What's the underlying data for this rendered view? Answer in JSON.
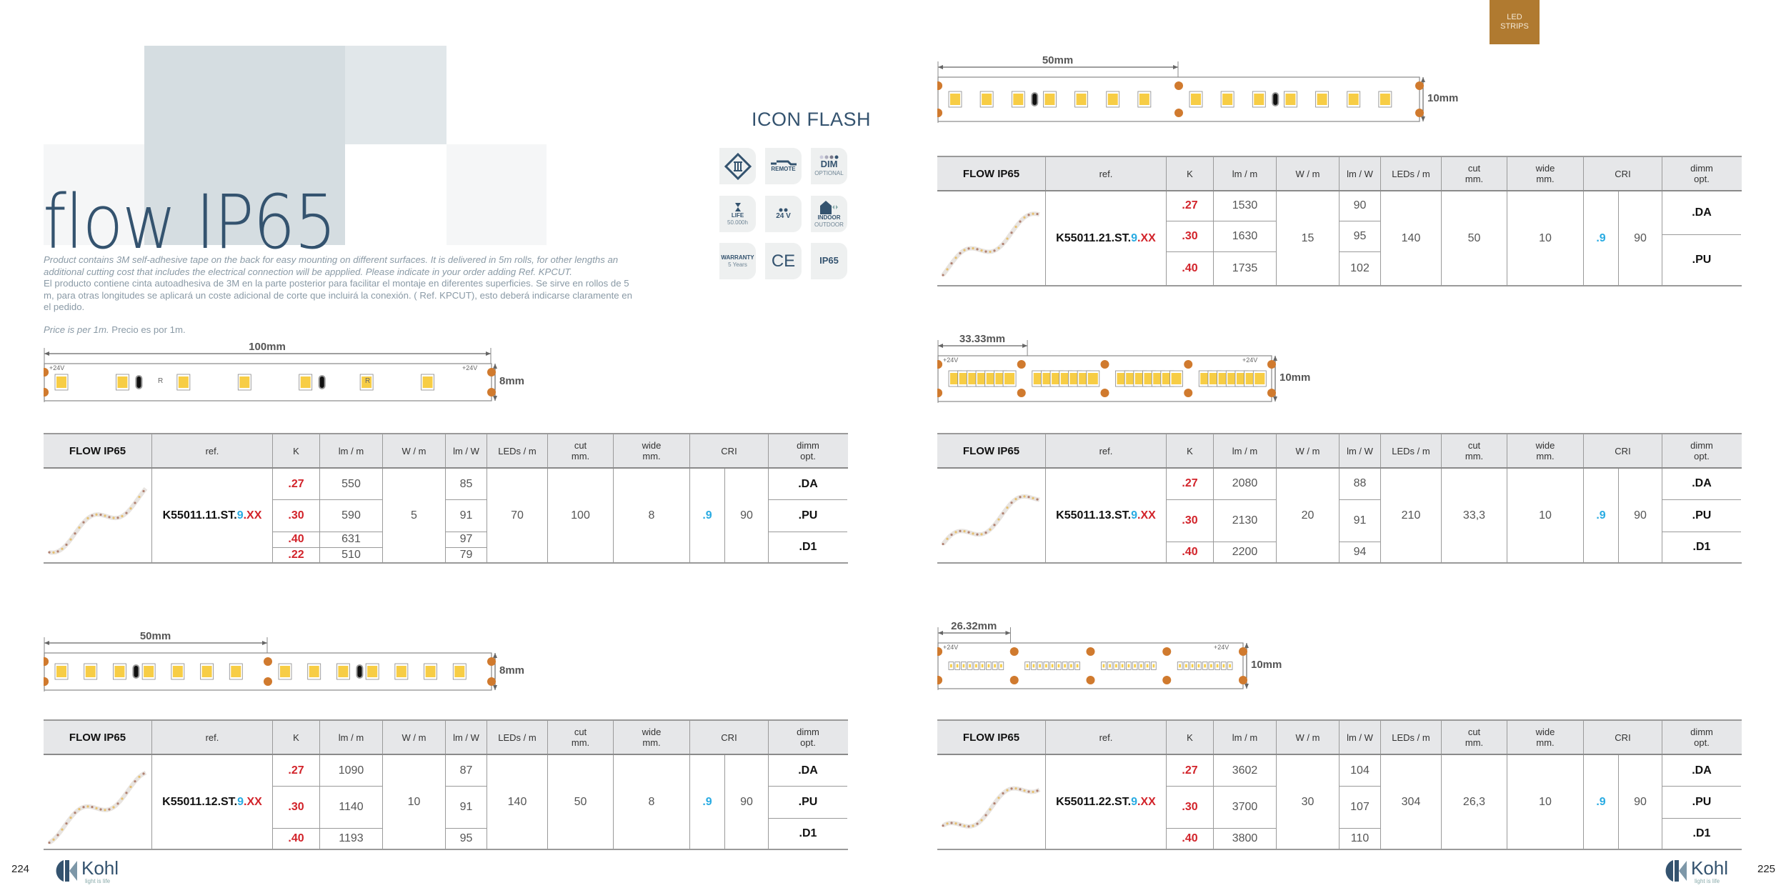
{
  "tab": {
    "line1": "LED",
    "line2": "STRIPS"
  },
  "title": "flow IP65",
  "icon_flash": {
    "title": "ICON FLASH",
    "icons": [
      {
        "name": "class-iii-icon",
        "label": "",
        "sub": ""
      },
      {
        "name": "remote-icon",
        "label": "REMOTE",
        "sub": ""
      },
      {
        "name": "dim-icon",
        "label": "DIM",
        "sub": "OPTIONAL"
      },
      {
        "name": "life-icon",
        "label": "LIFE",
        "sub": "50.000h"
      },
      {
        "name": "voltage-icon",
        "label": "24 V",
        "sub": ""
      },
      {
        "name": "indoor-outdoor-icon",
        "label": "INDOOR",
        "sub": "OUTDOOR"
      },
      {
        "name": "warranty-icon",
        "label": "WARRANTY",
        "sub": "5 Years"
      },
      {
        "name": "ce-icon",
        "label": "CE",
        "sub": ""
      },
      {
        "name": "ip65-icon",
        "label": "IP65",
        "sub": ""
      }
    ]
  },
  "description": {
    "en": "Product contains 3M self-adhesive tape on the back for easy mounting on different surfaces. It is delivered in 5m rolls, for other lengths an additional cutting cost that includes the electrical connection will be appplied. Please indicate in your order adding Ref. KPCUT.",
    "es": "El producto contiene cinta autoadhesiva de 3M en la parte posterior para facilitar el montaje en diferentes superficies. Se sirve en rollos de 5 m, para otras longitudes se aplicará un coste adicional de corte que incluirá la conexión. ( Ref. KPCUT), esto deberá indicarse claramente en el pedido."
  },
  "price": {
    "en": "Price is per 1m.",
    "es": "Precio es por 1m."
  },
  "table_header": [
    "FLOW IP65",
    "ref.",
    "K",
    "lm / m",
    "W / m",
    "lm / W",
    "LEDs / m",
    "cut\nmm.",
    "wide\nmm.",
    "CRI",
    "dimm\nopt."
  ],
  "products": [
    {
      "ref_base": "K55011.11.ST.",
      "ref_cri": "9",
      "ref_suffix": ".XX",
      "k": [
        ".27",
        ".30",
        ".40",
        ".22"
      ],
      "lm": [
        "550",
        "590",
        "631",
        "510"
      ],
      "w": "5",
      "lmw": [
        "85",
        "91",
        "97",
        "79"
      ],
      "leds": "70",
      "cut": "100",
      "wide": "8",
      "cri_code": ".9",
      "cri": "90",
      "dimm": [
        ".DA",
        ".PU",
        ".D1"
      ],
      "diagram": {
        "length": "100mm",
        "width": "8mm",
        "voltage": "+24V",
        "resistor": "R"
      }
    },
    {
      "ref_base": "K55011.12.ST.",
      "ref_cri": "9",
      "ref_suffix": ".XX",
      "k": [
        ".27",
        ".30",
        ".40"
      ],
      "lm": [
        "1090",
        "1140",
        "1193"
      ],
      "w": "10",
      "lmw": [
        "87",
        "91",
        "95"
      ],
      "leds": "140",
      "cut": "50",
      "wide": "8",
      "cri_code": ".9",
      "cri": "90",
      "dimm": [
        ".DA",
        ".PU",
        ".D1"
      ],
      "diagram": {
        "length": "50mm",
        "width": "8mm"
      }
    },
    {
      "ref_base": "K55011.21.ST.",
      "ref_cri": "9",
      "ref_suffix": ".XX",
      "k": [
        ".27",
        ".30",
        ".40"
      ],
      "lm": [
        "1530",
        "1630",
        "1735"
      ],
      "w": "15",
      "lmw": [
        "90",
        "95",
        "102"
      ],
      "leds": "140",
      "cut": "50",
      "wide": "10",
      "cri_code": ".9",
      "cri": "90",
      "dimm": [
        ".DA",
        ".PU"
      ],
      "diagram": {
        "length": "50mm",
        "width": "10mm"
      }
    },
    {
      "ref_base": "K55011.13.ST.",
      "ref_cri": "9",
      "ref_suffix": ".XX",
      "k": [
        ".27",
        ".30",
        ".40"
      ],
      "lm": [
        "2080",
        "2130",
        "2200"
      ],
      "w": "20",
      "lmw": [
        "88",
        "91",
        "94"
      ],
      "leds": "210",
      "cut": "33,3",
      "wide": "10",
      "cri_code": ".9",
      "cri": "90",
      "dimm": [
        ".DA",
        ".PU",
        ".D1"
      ],
      "diagram": {
        "length": "33.33mm",
        "width": "10mm",
        "voltage": "+24V"
      }
    },
    {
      "ref_base": "K55011.22.ST.",
      "ref_cri": "9",
      "ref_suffix": ".XX",
      "k": [
        ".27",
        ".30",
        ".40"
      ],
      "lm": [
        "3602",
        "3700",
        "3800"
      ],
      "w": "30",
      "lmw": [
        "104",
        "107",
        "110"
      ],
      "leds": "304",
      "cut": "26,3",
      "wide": "10",
      "cri_code": ".9",
      "cri": "90",
      "dimm": [
        ".DA",
        ".PU",
        ".D1"
      ],
      "diagram": {
        "length": "26.32mm",
        "width": "10mm",
        "voltage": "+24V"
      }
    }
  ],
  "footer": {
    "left_page": "224",
    "right_page": "225",
    "brand": "Kohl",
    "tagline": "light is life"
  },
  "colors": {
    "brand": "#34536f",
    "tab": "#b07a30",
    "k_red": "#d2232a",
    "cri_blue": "#29abe2",
    "header_bg": "#e6e7e9"
  }
}
